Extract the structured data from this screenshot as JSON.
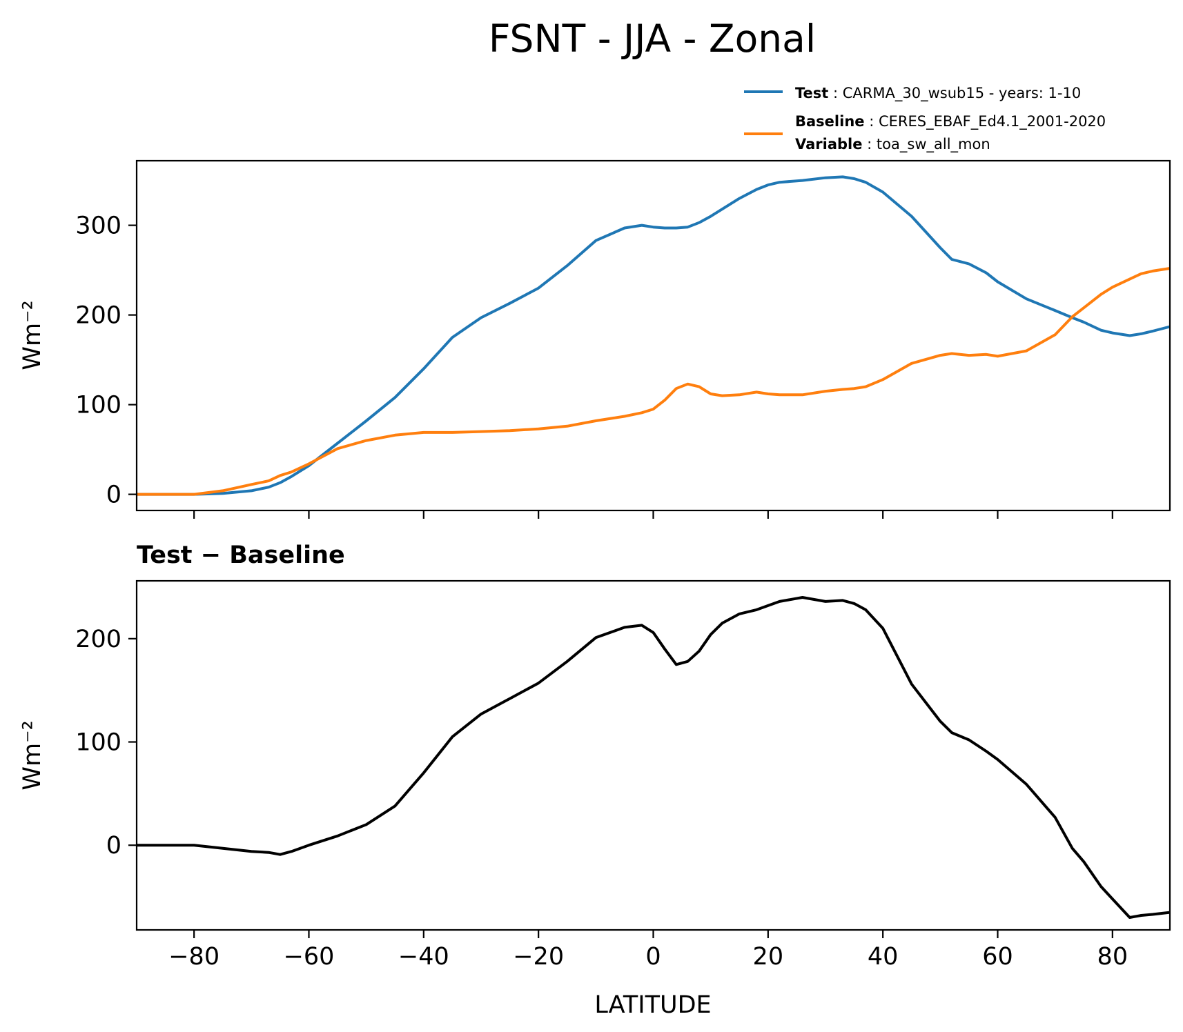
{
  "figure": {
    "title": "FSNT - JJA - Zonal",
    "xlabel": "LATITUDE"
  },
  "legend": {
    "test": {
      "label": "Test",
      "text": "CARMA_30_wsub15 - years: 1-10",
      "color": "#1f77b4"
    },
    "baseline": {
      "label": "Baseline",
      "text": "CERES_EBAF_Ed4.1_2001-2020",
      "variable_label": "Variable",
      "variable_text": "toa_sw_all_mon",
      "color": "#ff7f0e"
    }
  },
  "chart_data": [
    {
      "type": "line",
      "title": "",
      "xlabel": "",
      "ylabel": "Wm⁻²",
      "xlim": [
        -90,
        90
      ],
      "ylim": [
        -18,
        372
      ],
      "xticks": [
        -80,
        -60,
        -40,
        -20,
        0,
        20,
        40,
        60,
        80
      ],
      "yticks": [
        0,
        100,
        200,
        300
      ],
      "series": [
        {
          "name": "Test",
          "color": "#1f77b4",
          "x": [
            -90,
            -80,
            -75,
            -70,
            -67,
            -65,
            -63,
            -60,
            -55,
            -50,
            -45,
            -40,
            -35,
            -30,
            -25,
            -20,
            -15,
            -10,
            -5,
            -2,
            0,
            2,
            4,
            6,
            8,
            10,
            12,
            15,
            18,
            20,
            22,
            26,
            30,
            33,
            35,
            37,
            40,
            45,
            50,
            52,
            55,
            58,
            60,
            65,
            70,
            73,
            75,
            78,
            80,
            83,
            85,
            87,
            90
          ],
          "y": [
            0,
            0,
            1,
            4,
            8,
            13,
            20,
            32,
            57,
            82,
            108,
            140,
            175,
            197,
            213,
            230,
            255,
            283,
            297,
            300,
            298,
            297,
            297,
            298,
            303,
            310,
            318,
            330,
            340,
            345,
            348,
            350,
            353,
            354,
            352,
            348,
            337,
            310,
            275,
            262,
            257,
            247,
            237,
            218,
            205,
            197,
            192,
            183,
            180,
            177,
            179,
            182,
            187
          ]
        },
        {
          "name": "Baseline",
          "color": "#ff7f0e",
          "x": [
            -90,
            -80,
            -75,
            -70,
            -67,
            -65,
            -63,
            -60,
            -55,
            -50,
            -45,
            -40,
            -35,
            -30,
            -25,
            -20,
            -15,
            -10,
            -5,
            -2,
            0,
            2,
            4,
            6,
            8,
            10,
            12,
            15,
            18,
            20,
            22,
            26,
            30,
            33,
            35,
            37,
            40,
            45,
            50,
            52,
            55,
            58,
            60,
            65,
            70,
            73,
            75,
            78,
            80,
            83,
            85,
            87,
            90
          ],
          "y": [
            0,
            0,
            4,
            11,
            15,
            21,
            25,
            34,
            51,
            60,
            66,
            69,
            69,
            70,
            71,
            73,
            76,
            82,
            87,
            91,
            95,
            105,
            118,
            123,
            120,
            112,
            110,
            111,
            114,
            112,
            111,
            111,
            115,
            117,
            118,
            120,
            128,
            146,
            155,
            157,
            155,
            156,
            154,
            160,
            178,
            198,
            208,
            223,
            231,
            240,
            246,
            249,
            252
          ]
        }
      ]
    },
    {
      "type": "line",
      "title": "Test − Baseline",
      "xlabel": "LATITUDE",
      "ylabel": "Wm⁻²",
      "xlim": [
        -90,
        90
      ],
      "ylim": [
        -82,
        256
      ],
      "xticks": [
        -80,
        -60,
        -40,
        -20,
        0,
        20,
        40,
        60,
        80
      ],
      "yticks": [
        0,
        100,
        200
      ],
      "series": [
        {
          "name": "",
          "color": "#000000",
          "x": [
            -90,
            -80,
            -75,
            -70,
            -67,
            -65,
            -63,
            -60,
            -55,
            -50,
            -45,
            -40,
            -35,
            -30,
            -25,
            -20,
            -15,
            -10,
            -5,
            -2,
            0,
            2,
            4,
            6,
            8,
            10,
            12,
            15,
            18,
            20,
            22,
            26,
            30,
            33,
            35,
            37,
            40,
            45,
            50,
            52,
            55,
            58,
            60,
            65,
            70,
            73,
            75,
            78,
            80,
            83,
            85,
            87,
            90
          ],
          "y": [
            0,
            0,
            -3,
            -6,
            -7,
            -9,
            -6,
            0,
            9,
            20,
            38,
            70,
            105,
            127,
            142,
            157,
            178,
            201,
            211,
            213,
            206,
            190,
            175,
            178,
            188,
            204,
            215,
            224,
            228,
            232,
            236,
            240,
            236,
            237,
            234,
            228,
            210,
            156,
            120,
            109,
            102,
            91,
            83,
            59,
            27,
            -3,
            -16,
            -40,
            -52,
            -70,
            -68,
            -67,
            -65
          ]
        }
      ]
    }
  ]
}
